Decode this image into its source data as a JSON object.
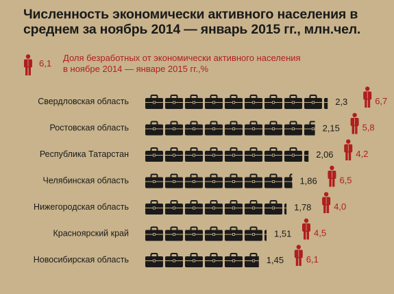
{
  "chart_data": {
    "type": "bar",
    "title_lines": [
      "Численность экономически активного населения в",
      "среднем за ноябрь 2014 — январь 2015 гг., млн.чел."
    ],
    "legend": {
      "example_value": "6,1",
      "text_lines": [
        "Доля безработных от экономически активного населения",
        "в ноябре 2014 — январе 2015 гг.,%"
      ]
    },
    "categories": [
      "Свердловская область",
      "Ростовская область",
      "Республика Татарстан",
      "Челябинская область",
      "Нижегородская область",
      "Красноярский край",
      "Новосибирская область"
    ],
    "series": [
      {
        "values": [
          2.3,
          2.15,
          2.06,
          1.86,
          1.78,
          1.51,
          1.45
        ],
        "labels": [
          "2,3",
          "2,15",
          "2,06",
          "1,86",
          "1,78",
          "1,51",
          "1,45"
        ],
        "icon": "briefcase-icon"
      },
      {
        "values": [
          6.7,
          5.8,
          4.2,
          6.5,
          4.0,
          4.5,
          6.1
        ],
        "labels": [
          "6,7",
          "5,8",
          "4,2",
          "6,5",
          "4,0",
          "4,5",
          "6,1"
        ],
        "icon": "person-icon"
      }
    ],
    "icon_unit": 0.25,
    "colors": {
      "background": "#c8b38c",
      "briefcase": "#1a1a1a",
      "unemployment": "#b01e1e"
    }
  }
}
